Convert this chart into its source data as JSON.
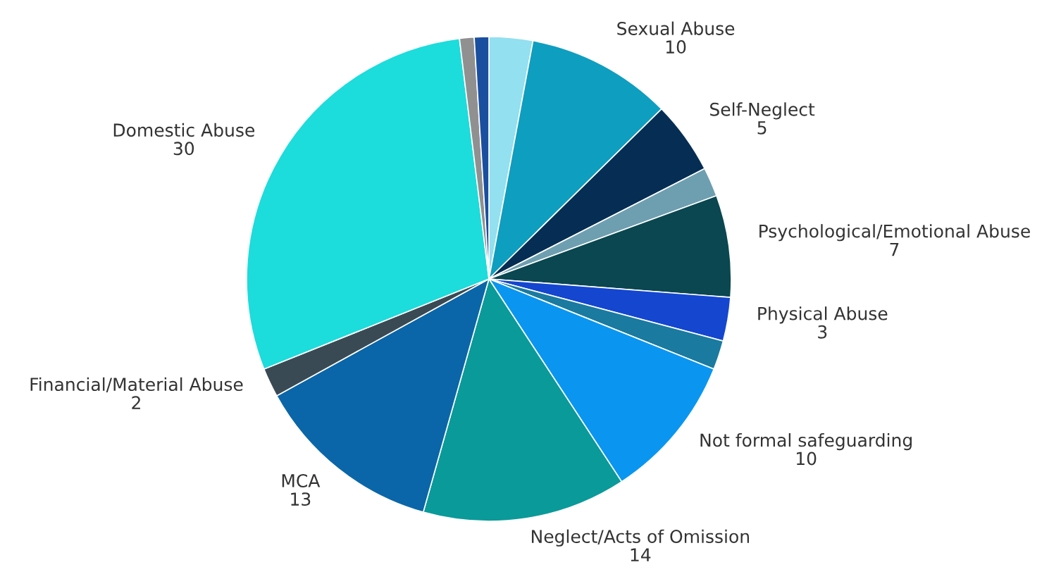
{
  "chart_data": {
    "type": "pie",
    "categories": [
      null,
      "Sexual Abuse",
      "Self-Neglect",
      null,
      "Psychological/Emotional Abuse",
      "Physical Abuse",
      null,
      "Not formal safeguarding",
      "Neglect/Acts of Omission",
      "MCA",
      "Financial/Material Abuse",
      "Domestic Abuse",
      null,
      null
    ],
    "values": [
      3,
      10,
      5,
      2,
      7,
      3,
      2,
      10,
      14,
      13,
      2,
      30,
      1,
      1
    ],
    "value_labels": [
      null,
      "10",
      "5",
      null,
      "7",
      "3",
      null,
      "10",
      "14",
      "13",
      "2",
      "30",
      null,
      null
    ],
    "colors": [
      "#92e0f0",
      "#0e9ec0",
      "#062e54",
      "#6e9fb0",
      "#0a4750",
      "#1446d0",
      "#1a7aa0",
      "#0a96f0",
      "#0a9a9a",
      "#0a66a8",
      "#3a4a55",
      "#1cdcdc",
      "#909090",
      "#1a4fa0"
    ],
    "legend": false
  }
}
